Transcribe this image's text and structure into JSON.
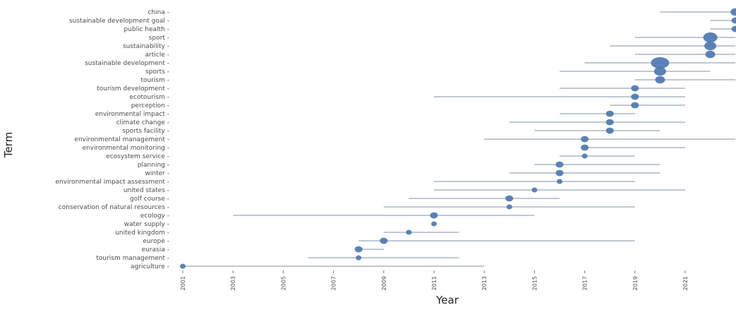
{
  "chart_data": {
    "type": "scatter",
    "xlabel": "Year",
    "ylabel": "Term",
    "xlim": [
      2000.5,
      2024
    ],
    "x_ticks": [
      "2001",
      "2003",
      "2005",
      "2007",
      "2009",
      "2011",
      "2013",
      "2015",
      "2017",
      "2019",
      "2021"
    ],
    "grid": false,
    "legend": "none",
    "colors": {
      "point": "#4e78b0",
      "line": "#9aa6b8",
      "text": "#4d4d4d"
    },
    "terms": [
      {
        "term": "china",
        "q1": 2020,
        "median": 2023,
        "q3": 2023,
        "freq": 3
      },
      {
        "term": "sustainable development goal",
        "q1": 2022,
        "median": 2023,
        "q3": 2023,
        "freq": 2
      },
      {
        "term": "public health",
        "q1": 2022,
        "median": 2023,
        "q3": 2023,
        "freq": 2
      },
      {
        "term": "sport",
        "q1": 2019,
        "median": 2022,
        "q3": 2023,
        "freq": 5
      },
      {
        "term": "sustainability",
        "q1": 2018,
        "median": 2022,
        "q3": 2023,
        "freq": 4
      },
      {
        "term": "article",
        "q1": 2019,
        "median": 2022,
        "q3": 2023,
        "freq": 3
      },
      {
        "term": "sustainable development",
        "q1": 2017,
        "median": 2020,
        "q3": 2023,
        "freq": 7
      },
      {
        "term": "sports",
        "q1": 2016,
        "median": 2020,
        "q3": 2022,
        "freq": 4
      },
      {
        "term": "tourism",
        "q1": 2019,
        "median": 2020,
        "q3": 2023,
        "freq": 3
      },
      {
        "term": "tourism development",
        "q1": 2016,
        "median": 2019,
        "q3": 2021,
        "freq": 2
      },
      {
        "term": "ecotourism",
        "q1": 2011,
        "median": 2019,
        "q3": 2021,
        "freq": 2
      },
      {
        "term": "perception",
        "q1": 2018,
        "median": 2019,
        "q3": 2021,
        "freq": 2
      },
      {
        "term": "environmental impact",
        "q1": 2016,
        "median": 2018,
        "q3": 2019,
        "freq": 2
      },
      {
        "term": "climate change",
        "q1": 2014,
        "median": 2018,
        "q3": 2021,
        "freq": 2
      },
      {
        "term": "sports facility",
        "q1": 2015,
        "median": 2018,
        "q3": 2020,
        "freq": 2
      },
      {
        "term": "environmental management",
        "q1": 2013,
        "median": 2017,
        "q3": 2023,
        "freq": 2
      },
      {
        "term": "environmental monitoring",
        "q1": 2017,
        "median": 2017,
        "q3": 2021,
        "freq": 2
      },
      {
        "term": "ecosystem service",
        "q1": 2016,
        "median": 2017,
        "q3": 2019,
        "freq": 1
      },
      {
        "term": "planning",
        "q1": 2015,
        "median": 2016,
        "q3": 2020,
        "freq": 2
      },
      {
        "term": "winter",
        "q1": 2014,
        "median": 2016,
        "q3": 2020,
        "freq": 2
      },
      {
        "term": "environmental impact assessment",
        "q1": 2011,
        "median": 2016,
        "q3": 2019,
        "freq": 1
      },
      {
        "term": "united states",
        "q1": 2011,
        "median": 2015,
        "q3": 2021,
        "freq": 1
      },
      {
        "term": "golf course",
        "q1": 2010,
        "median": 2014,
        "q3": 2016,
        "freq": 2
      },
      {
        "term": "conservation of natural resources",
        "q1": 2009,
        "median": 2014,
        "q3": 2019,
        "freq": 1
      },
      {
        "term": "ecology",
        "q1": 2003,
        "median": 2011,
        "q3": 2015,
        "freq": 2
      },
      {
        "term": "water supply",
        "q1": 2011,
        "median": 2011,
        "q3": 2011,
        "freq": 1
      },
      {
        "term": "united kingdom",
        "q1": 2009,
        "median": 2010,
        "q3": 2012,
        "freq": 1
      },
      {
        "term": "europe",
        "q1": 2008,
        "median": 2009,
        "q3": 2019,
        "freq": 2
      },
      {
        "term": "eurasia",
        "q1": 2008,
        "median": 2008,
        "q3": 2009,
        "freq": 2
      },
      {
        "term": "tourism management",
        "q1": 2006,
        "median": 2008,
        "q3": 2012,
        "freq": 1
      },
      {
        "term": "agriculture",
        "q1": 2001,
        "median": 2001,
        "q3": 2013,
        "freq": 1
      }
    ]
  }
}
